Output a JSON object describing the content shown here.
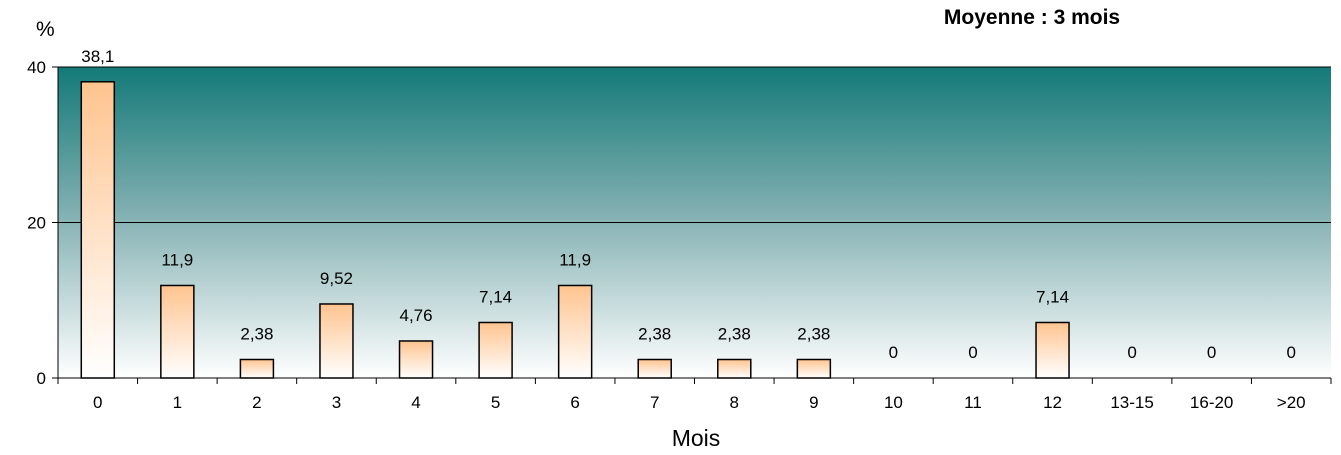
{
  "chart_data": {
    "type": "bar",
    "categories": [
      "0",
      "1",
      "2",
      "3",
      "4",
      "5",
      "6",
      "7",
      "8",
      "9",
      "10",
      "11",
      "12",
      "13-15",
      "16-20",
      ">20"
    ],
    "values": [
      38.1,
      11.9,
      2.38,
      9.52,
      4.76,
      7.14,
      11.9,
      2.38,
      2.38,
      2.38,
      0,
      0,
      7.14,
      0,
      0,
      0
    ],
    "data_labels": [
      "38,1",
      "11,9",
      "2,38",
      "9,52",
      "4,76",
      "7,14",
      "11,9",
      "2,38",
      "2,38",
      "2,38",
      "0",
      "0",
      "7,14",
      "0",
      "0",
      "0"
    ],
    "yticks": [
      0,
      20,
      40
    ],
    "ytick_labels": [
      "0",
      "20",
      "40"
    ],
    "ylim": [
      0,
      40
    ],
    "ylabel": "%",
    "xlabel": "Mois",
    "annotation": "Moyenne : 3 mois",
    "grid": true,
    "legend": "none",
    "colors": {
      "plot_top": "#137a78",
      "plot_mid": "#7eadaf",
      "plot_bottom": "#ffffff",
      "bar_top": "#ffc48f",
      "bar_bottom": "#ffffff",
      "bar_stroke": "#000000",
      "gridline": "#000000"
    }
  }
}
